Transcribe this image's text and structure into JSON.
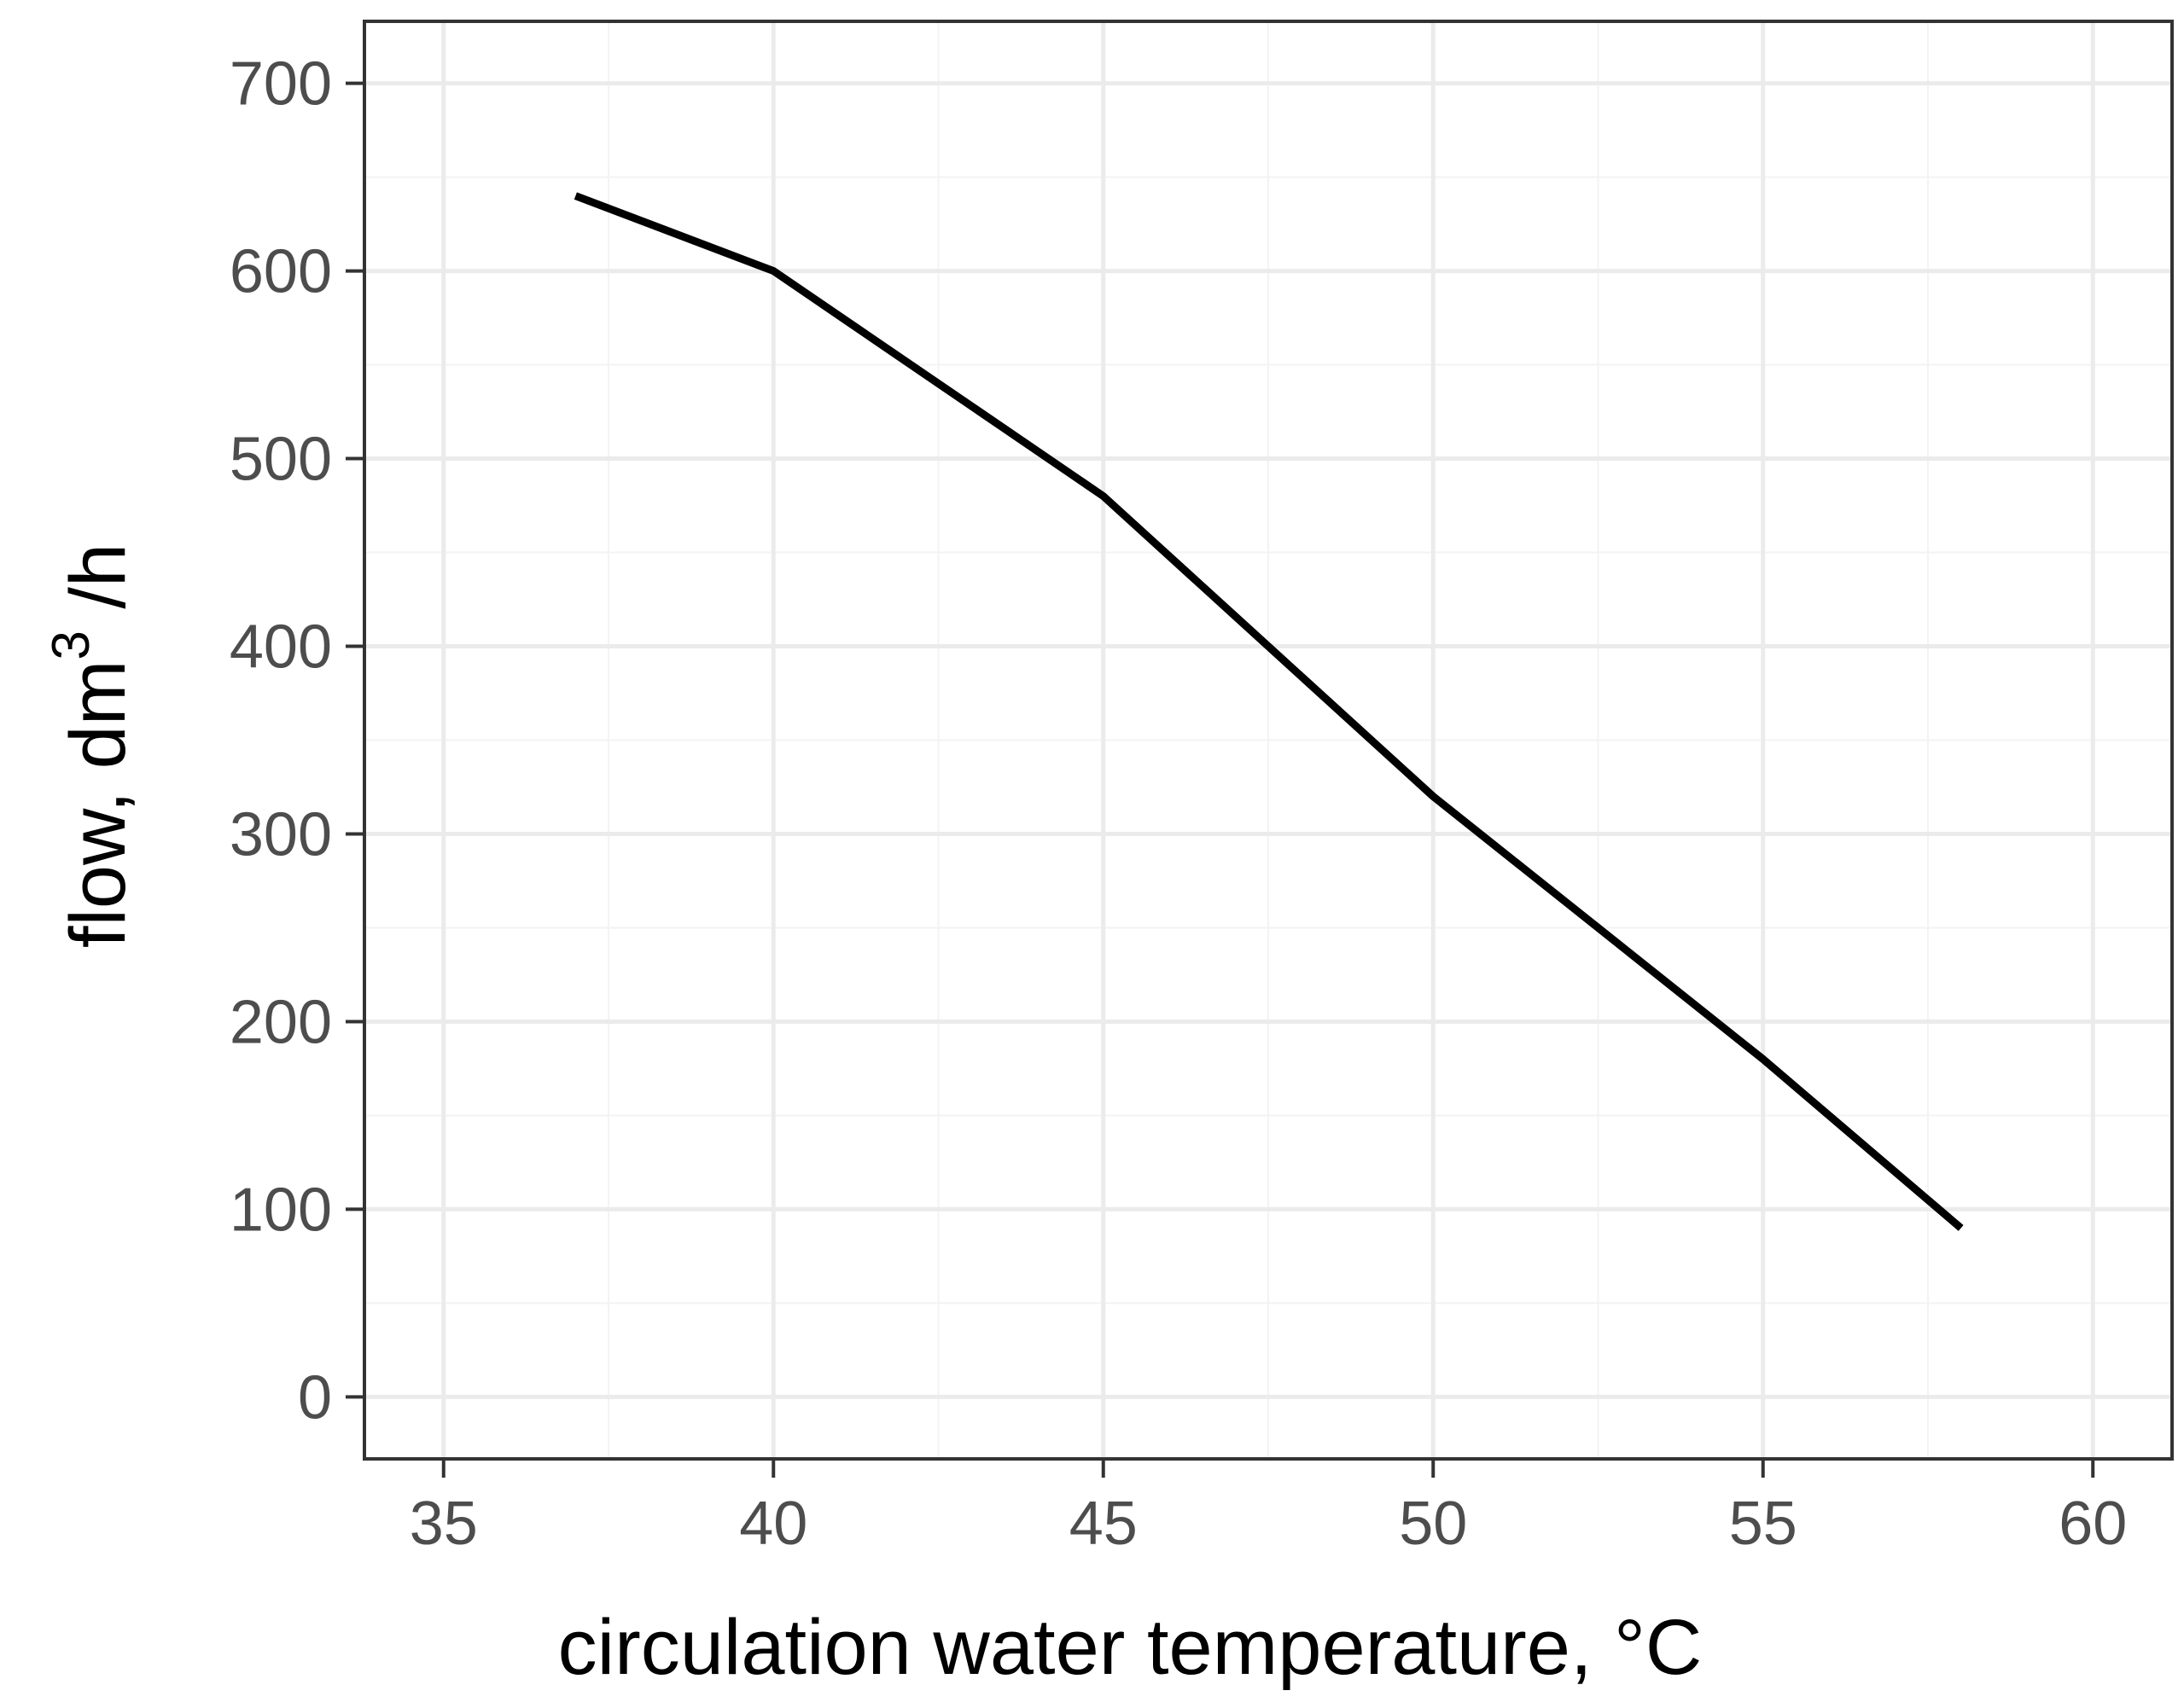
{
  "chart_data": {
    "type": "line",
    "title": "",
    "xlabel": "circulation water temperature, °C",
    "ylabel": {
      "prefix": "flow, dm",
      "superscript": "3",
      "suffix": " /h"
    },
    "xlim": [
      33.8,
      61.2
    ],
    "ylim": [
      -33,
      733
    ],
    "x_ticks": [
      35,
      40,
      45,
      50,
      55,
      60
    ],
    "y_ticks": [
      0,
      100,
      200,
      300,
      400,
      500,
      600,
      700
    ],
    "x_tick_labels": [
      "35",
      "40",
      "45",
      "50",
      "55",
      "60"
    ],
    "y_tick_labels": [
      "0",
      "100",
      "200",
      "300",
      "400",
      "500",
      "600",
      "700"
    ],
    "grid": true,
    "series": [
      {
        "name": "flow",
        "color": "#000000",
        "x": [
          37,
          40,
          45,
          50,
          55,
          58
        ],
        "y": [
          640,
          600,
          480,
          320,
          180,
          90
        ]
      }
    ],
    "colors": {
      "grid_major": "#ebebeb",
      "grid_minor": "#f3f3f3",
      "panel_border": "#333333",
      "tick_text": "#4d4d4d",
      "line": "#000000"
    }
  }
}
